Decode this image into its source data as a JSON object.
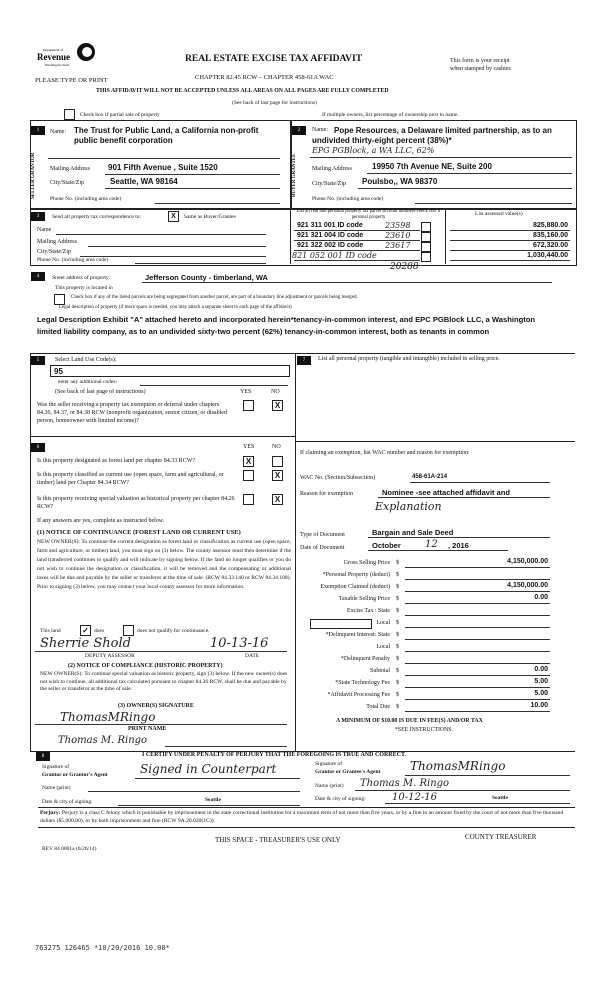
{
  "header": {
    "logo_text": "Department of Revenue Washington State",
    "title": "REAL ESTATE EXCISE TAX AFFIDAVIT",
    "chapter": "CHAPTER 82.45 RCW – CHAPTER 458-61A WAC",
    "please": "PLEASE TYPE OR PRINT",
    "receipt_1": "This form is your receipt",
    "receipt_2": "when stamped by cashier.",
    "warning": "THIS AFFIDAVIT WILL NOT BE ACCEPTED UNLESS ALL AREAS ON ALL PAGES ARE FULLY COMPLETED",
    "see_back": "(See back of last page for instructions)",
    "partial_sale": "Check box if partial sale of property",
    "multiple_owners": "If multiple owners, list percentage of ownership next to name."
  },
  "seller": {
    "num": "1",
    "side_label": "SELLER GRANTOR",
    "name_label": "Name:",
    "name": "The Trust for Public Land, a California non-profit public benefit corporation",
    "mail_label": "Mailing Address",
    "mail": "901 Fifth Avenue , Suite 1520",
    "city_label": "City/State/Zip",
    "city": "Seattle, WA 98164",
    "phone_label": "Phone No. (including area code)"
  },
  "buyer": {
    "num": "2",
    "side_label": "BUYER GRANTEE",
    "name_label": "Name:",
    "name": "Pope Resources, a Delaware limited partnership, as to an undivided thirty-eight percent (38%)*",
    "name_hand": "EPG PGBlock, a WA LLC, 62%",
    "mail_label": "Mailing Address",
    "mail": "19950 7th Avenue NE, Suite 200",
    "city_label": "City/State/Zip",
    "city": "Poulsbo,, WA 98370",
    "phone_label": "Phone No. (including area code)"
  },
  "correspondence": {
    "num": "3",
    "label": "Send all property tax correspondence to:",
    "same_checked": "X",
    "same_label": "Same as Buyer/Grantee",
    "name_label": "Name",
    "mail_label": "Mailing Address",
    "city_label": "City/State/Zip",
    "phone_label": "Phone No. (including area code)"
  },
  "parcels": {
    "header": "List all real and personal property tax parcel account numbers-check box if personal property",
    "value_header": "List assessed value(s)",
    "rows": [
      {
        "number": "921 311 001 ID code",
        "hand": "23598",
        "value": "825,880.00"
      },
      {
        "number": "921 321 004 ID code",
        "hand": "23610",
        "value": "835,160.00"
      },
      {
        "number": "921 322 002 ID code",
        "hand": "23617",
        "value": "672,320.00"
      },
      {
        "number": "",
        "hand": "821 052 001 ID code",
        "value": "1,030,440.00"
      }
    ],
    "extra_hand": "20288"
  },
  "property": {
    "num": "4",
    "street_label": "Street address of property:",
    "street": "Jefferson County - timberland, WA",
    "located": "This property is located in",
    "segregated": "Check box if any of the listed parcels are being segregated from another parcel, are part of a boundary line adjustment or parcels being merged.",
    "legal_label": "Legal description of property (if more space is needed, you may attach a separate sheet to each page of the affidavit)",
    "legal": "Legal Description Exhibit \"A\" attached hereto and incorporated herein*tenancy-in-common interest, and EPC PGBlock LLC, a Washington limited liability company, as to an undivided sixty-two percent (62%) tenancy-in-common interest, both as tenants in common"
  },
  "land_use": {
    "num": "5",
    "label": "Select Land Use Code(s):",
    "code": "95",
    "additional": "enter any additional codes:",
    "see_back": "(See back of last page of instructions)",
    "yes": "YES",
    "no": "NO",
    "question": "Was the seller receiving a property tax exemption or deferral under chapters 84.36, 84.37, or 84.38 RCW (nonprofit organization, senior citizen, or disabled person, homeowner with limited income)?",
    "answer_no": "X"
  },
  "personal_property": {
    "num": "7",
    "label": "List all personal property (tangible and intangible) included in selling price."
  },
  "designation": {
    "num": "6",
    "yes": "YES",
    "no": "NO",
    "questions": [
      {
        "text": "Is this property designated as forest land per chapter 84.33 RCW?",
        "yes": "X",
        "no": ""
      },
      {
        "text": "Is this property classified as current use (open space, farm and agricultural, or timber) land per Chapter 84.34 RCW?",
        "yes": "",
        "no": "X"
      },
      {
        "text": "Is this property receiving special valuation as historical property per chapter 84.26 RCW?",
        "yes": "",
        "no": "X"
      }
    ],
    "if_yes": "If any answers are yes, complete as instructed below.",
    "notice1_title": "(1) NOTICE OF CONTINUANCE (FOREST LAND OR CURRENT USE)",
    "notice1_body": "NEW OWNER(S): To continue the current designation as forest land or classification as current use (open space, farm and agriculture, or timber) land, you must sign on (3) below. The county assessor must then determine if the land transferred continues to qualify and will indicate by signing below. If the land no longer qualifies or you do not wish to continue the designation or classification, it will be removed and the compensating or additional taxes will be due and payable by the seller or transferor at the time of sale. (RCW 84.33.140 or RCW 84.34.108). Prior to signing (3) below, you may contact your local county assessor for more information.",
    "this_land": "This land",
    "does": "does",
    "does_not": "does not qualify for continuance.",
    "assessor_sig": "Sherrie Shold",
    "assessor_date": "10-13-16",
    "deputy_label": "DEPUTY ASSESSOR",
    "date_label": "DATE",
    "notice2_title": "(2) NOTICE OF COMPLIANCE (HISTORIC PROPERTY)",
    "notice2_body": "NEW OWNER(S): To continue special valuation as historic property, sign (3) below. If the new owner(s) does not wish to continue, all additional tax calculated pursuant to chapter 84.26 RCW, shall be due and payable by the seller or transferor at the time of sale.",
    "owner_sig_label": "(3) OWNER(S) SIGNATURE",
    "owner_sig": "ThomasMRingo",
    "print_label": "PRINT NAME",
    "print_name": "Thomas M. Ringo"
  },
  "exemption": {
    "intro": "If claiming an exemption, list WAC number and reason for exemption:",
    "wac_label": "WAC No. (Section/Subsection)",
    "wac": "458-61A-214",
    "reason_label": "Reason for exemption",
    "reason": "Nominee -see attached affidavit and",
    "reason_hand": "Explanation",
    "doc_type_label": "Type of Document",
    "doc_type": "Bargain and Sale Deed",
    "doc_date_label": "Date of Document",
    "doc_month": "October",
    "doc_day": "12",
    "doc_year": ", 2016"
  },
  "totals": {
    "rows": [
      {
        "label": "Gross Selling Price",
        "value": "4,150,000.00"
      },
      {
        "label": "*Personal Property (deduct)",
        "value": ""
      },
      {
        "label": "Exemption Claimed (deduct)",
        "value": "4,150,000.00"
      },
      {
        "label": "Taxable Selling Price",
        "value": "0.00"
      },
      {
        "label": "Excise Tax : State",
        "value": ""
      },
      {
        "label": "Local",
        "value": ""
      },
      {
        "label": "*Delinquent Interest: State",
        "value": ""
      },
      {
        "label": "Local",
        "value": ""
      },
      {
        "label": "*Delinquent Penalty",
        "value": ""
      },
      {
        "label": "Subtotal",
        "value": "0.00"
      },
      {
        "label": "*State Technology Fee",
        "value": "5.00"
      },
      {
        "label": "*Affidavit Processing Fee",
        "value": "5.00"
      },
      {
        "label": "Total Due",
        "value": "10.00"
      }
    ],
    "currency": "$",
    "minimum": "A MINIMUM OF $10.00 IS DUE IN FEE(S) AND/OR TAX",
    "see_instr": "*SEE INSTRUCTIONS"
  },
  "certify": {
    "num": "8",
    "title": "I CERTIFY UNDER PENALTY OF PERJURY THAT THE FOREGOING IS TRUE AND CORRECT.",
    "grantor_sig_label_1": "Signature of",
    "grantor_sig_label_2": "Grantor or Grantor's Agent",
    "grantor_sig": "Signed in Counterpart",
    "grantor_name_label": "Name (print)",
    "grantor_date_label": "Date & city of signing:",
    "grantor_city": "Seattle",
    "grantee_sig_label_1": "Signature of",
    "grantee_sig_label_2": "Grantor or Grantee's Agent",
    "grantee_sig": "ThomasMRingo",
    "grantee_name_label": "Name (print)",
    "grantee_name": "Thomas M. Ringo",
    "grantee_date_label": "Date & city of signing:",
    "grantee_date": "10-12-16",
    "grantee_city": "Seattle",
    "perjury_label": "Perjury:",
    "perjury": "Perjury is a class C felony which is punishable by imprisonment in the state correctional institution for a maximum term of not more than five years, or by a fine in an amount fixed by the court of not more than five thousand dollars ($5,000.00), or by both imprisonment and fine (RCW 9A.20.020(1C))."
  },
  "footer": {
    "rev": "REV 84 0001a (6/26/14)",
    "treasurer_space": "THIS SPACE - TREASURER'S USE ONLY",
    "county_treasurer": "COUNTY TREASURER",
    "stamp": "763275 126465 *10/20/2016 10.00*"
  }
}
